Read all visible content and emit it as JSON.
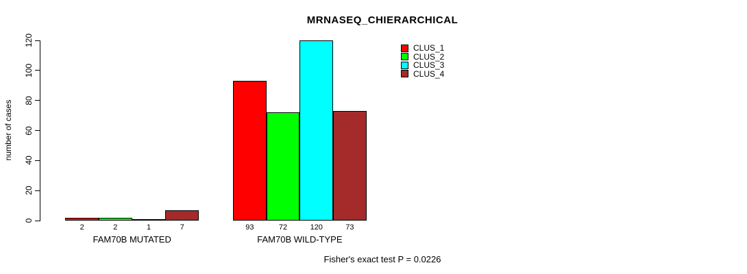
{
  "title": "MRNASEQ_CHIERARCHICAL",
  "footnote": "Fisher's exact test P = 0.0226",
  "y_axis": {
    "label": "number of cases",
    "ticks": [
      0,
      20,
      40,
      60,
      80,
      100,
      120
    ],
    "min": 0,
    "max": 120
  },
  "legend": {
    "entries": [
      "CLUS_1",
      "CLUS_2",
      "CLUS_3",
      "CLUS_4"
    ]
  },
  "colors": {
    "clus_1": "#FF0000",
    "clus_2": "#00FF00",
    "clus_3": "#00FFFF",
    "clus_4": "#A52A2A",
    "bar_border": "#000000"
  },
  "chart_data": {
    "type": "bar",
    "title": "MRNASEQ_CHIERARCHICAL",
    "xlabel": "",
    "ylabel": "number of cases",
    "ylim": [
      0,
      120
    ],
    "yticks": [
      0,
      20,
      40,
      60,
      80,
      100,
      120
    ],
    "grid": false,
    "legend_position": "top-right",
    "categories": [
      "FAM70B MUTATED",
      "FAM70B WILD-TYPE"
    ],
    "series": [
      {
        "name": "CLUS_1",
        "color": "#FF0000",
        "values": [
          2,
          93
        ]
      },
      {
        "name": "CLUS_2",
        "color": "#00FF00",
        "values": [
          2,
          72
        ]
      },
      {
        "name": "CLUS_3",
        "color": "#00FFFF",
        "values": [
          1,
          120
        ]
      },
      {
        "name": "CLUS_4",
        "color": "#A52A2A",
        "values": [
          7,
          73
        ]
      }
    ],
    "bar_value_labels": [
      [
        2,
        2,
        1,
        7
      ],
      [
        93,
        72,
        120,
        73
      ]
    ],
    "annotation": "Fisher's exact test P = 0.0226"
  }
}
